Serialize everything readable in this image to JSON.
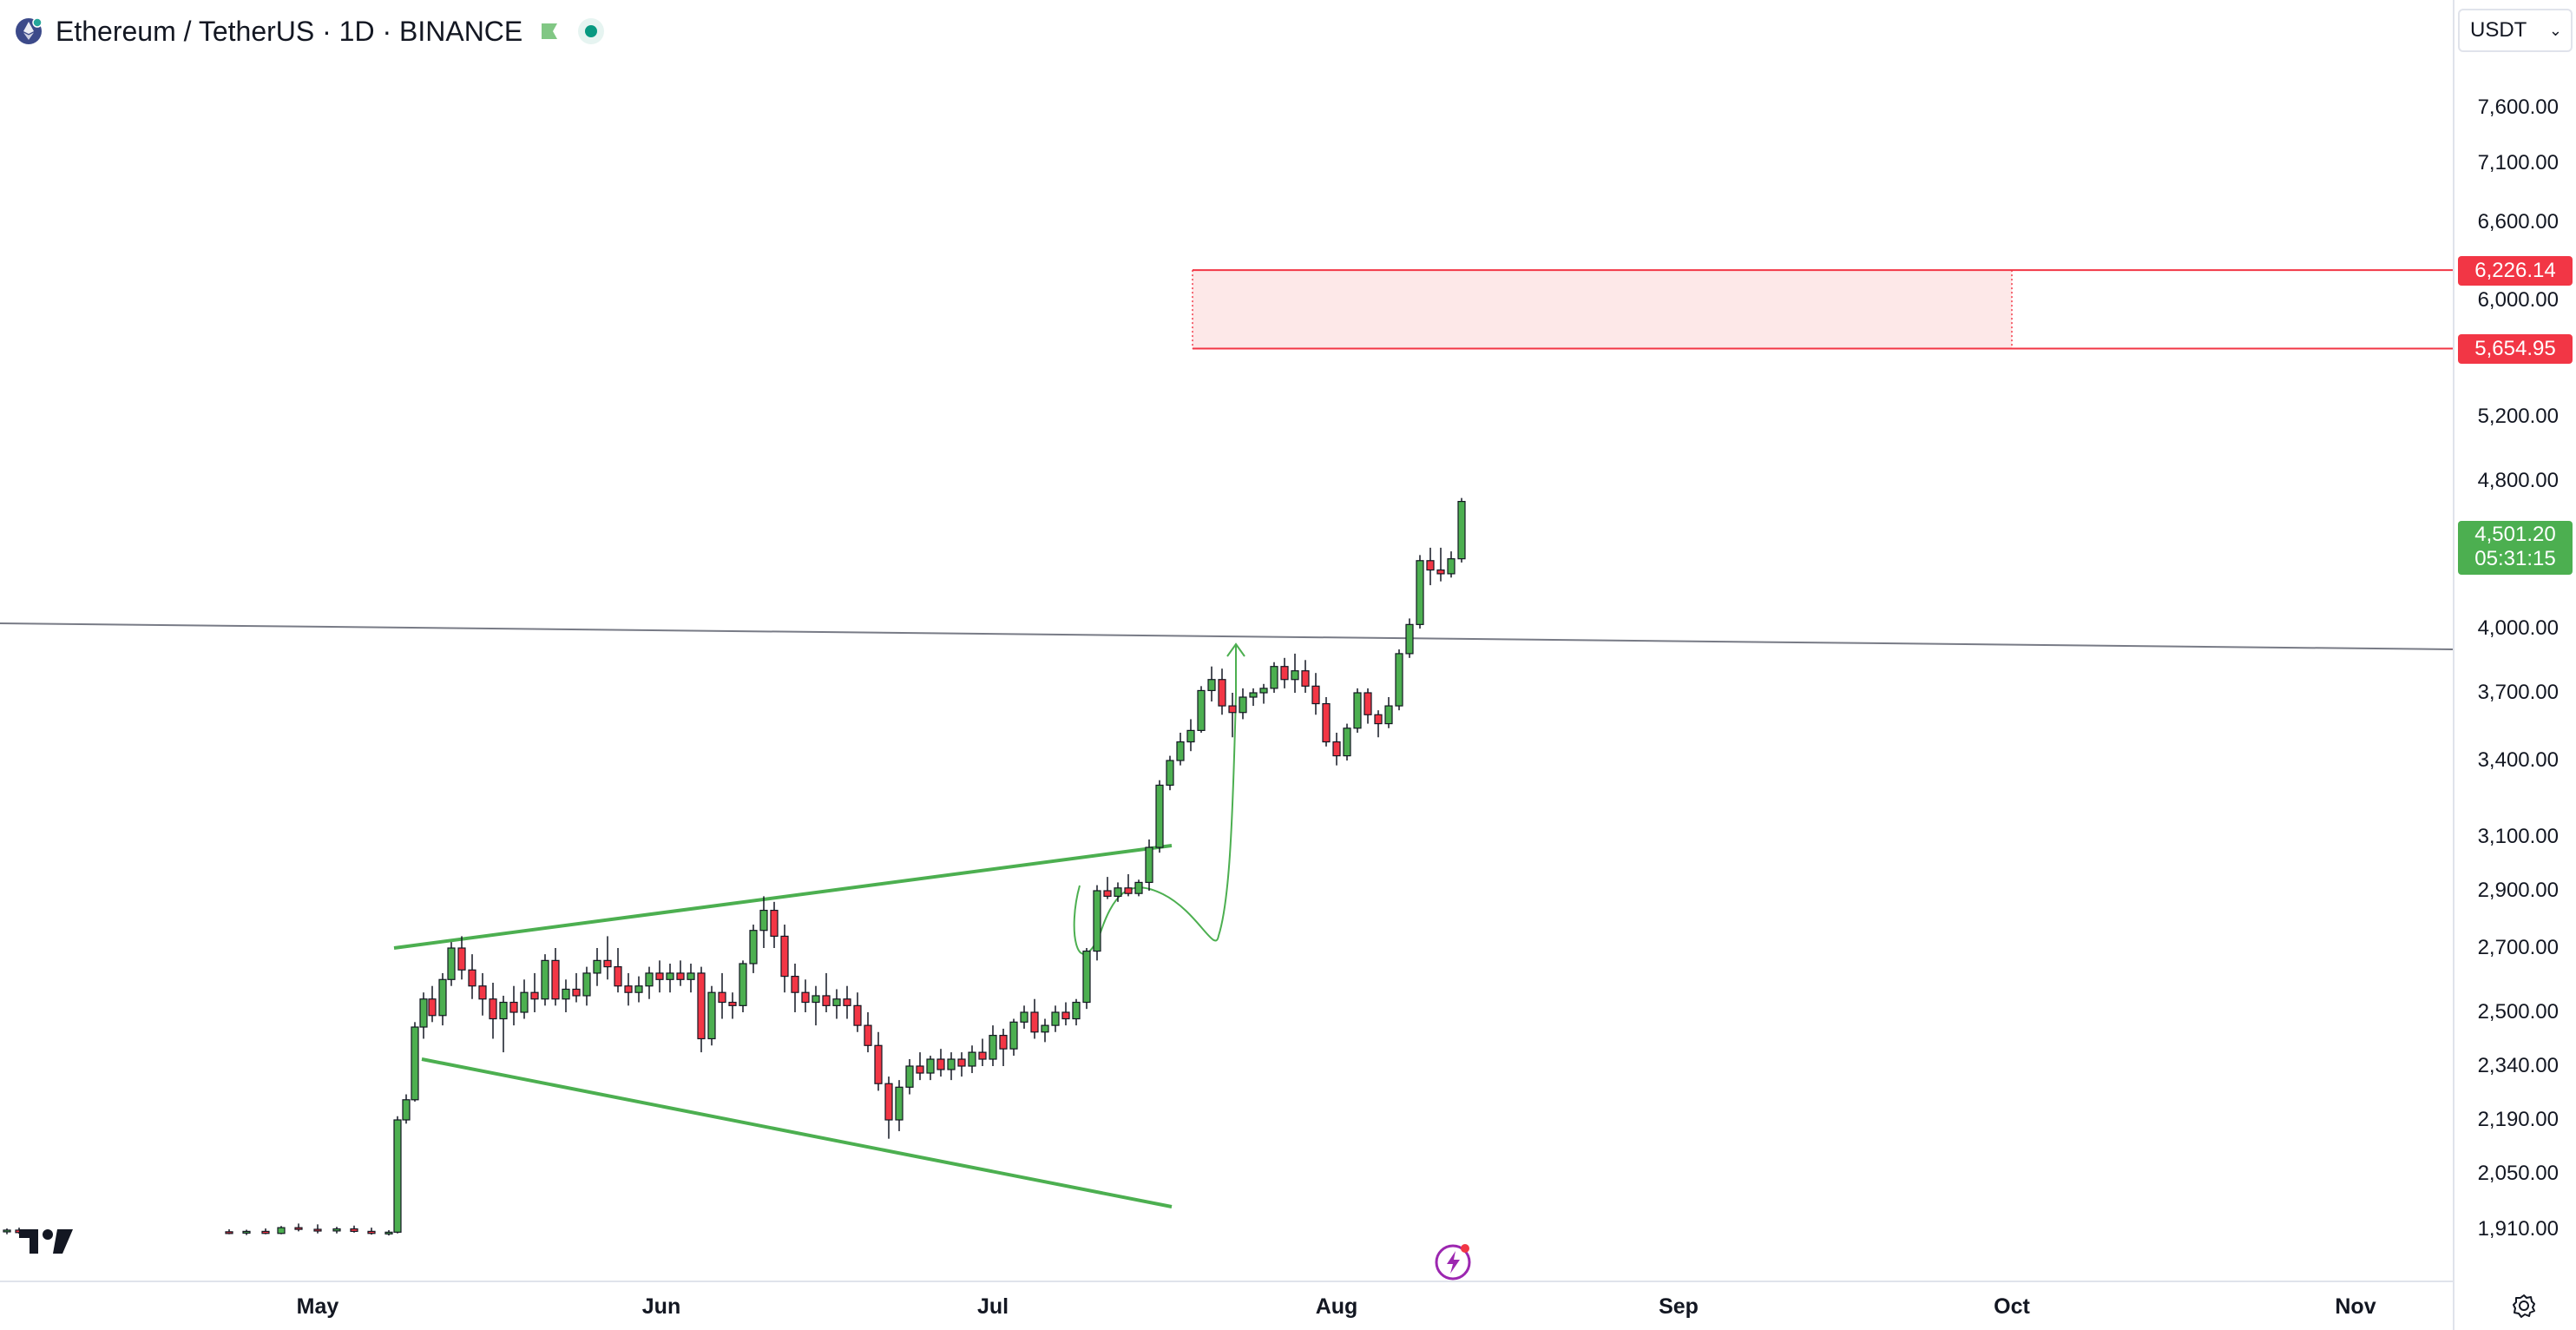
{
  "header": {
    "symbol_title": "Ethereum / TetherUS · 1D · BINANCE",
    "coin_icon": "ethereum-coin-icon",
    "flag_icon": "flag-icon",
    "status_icon": "market-open-dot-icon"
  },
  "currency_select": {
    "value": "USDT"
  },
  "price_axis": {
    "ticks": [
      "7,600.00",
      "7,100.00",
      "6,600.00",
      "6,000.00",
      "5,200.00",
      "4,800.00",
      "4,000.00",
      "3,700.00",
      "3,400.00",
      "3,100.00",
      "2,900.00",
      "2,700.00",
      "2,500.00",
      "2,340.00",
      "2,190.00",
      "2,050.00",
      "1,910.00"
    ],
    "tick_values": [
      7600,
      7100,
      6600,
      6000,
      5200,
      4800,
      4000,
      3700,
      3400,
      3100,
      2900,
      2700,
      2500,
      2340,
      2190,
      2050,
      1910
    ]
  },
  "time_axis": {
    "labels": [
      "May",
      "Jun",
      "Jul",
      "Aug",
      "Sep",
      "Oct",
      "Nov"
    ]
  },
  "price_tags": {
    "zone_top": "6,226.14",
    "zone_bottom": "5,654.95",
    "last_price": "4,501.20",
    "countdown": "05:31:15"
  },
  "colors": {
    "up": "#4caf50",
    "down": "#f23645",
    "zone_fill": "#fde8e8",
    "zone_border": "#f23645",
    "pattern_line": "#4caf50",
    "horizontal_line": "#787b86"
  },
  "icons": {
    "settings": "gear-icon",
    "logo": "tradingview-logo",
    "lightning": "lightning-icon"
  }
}
